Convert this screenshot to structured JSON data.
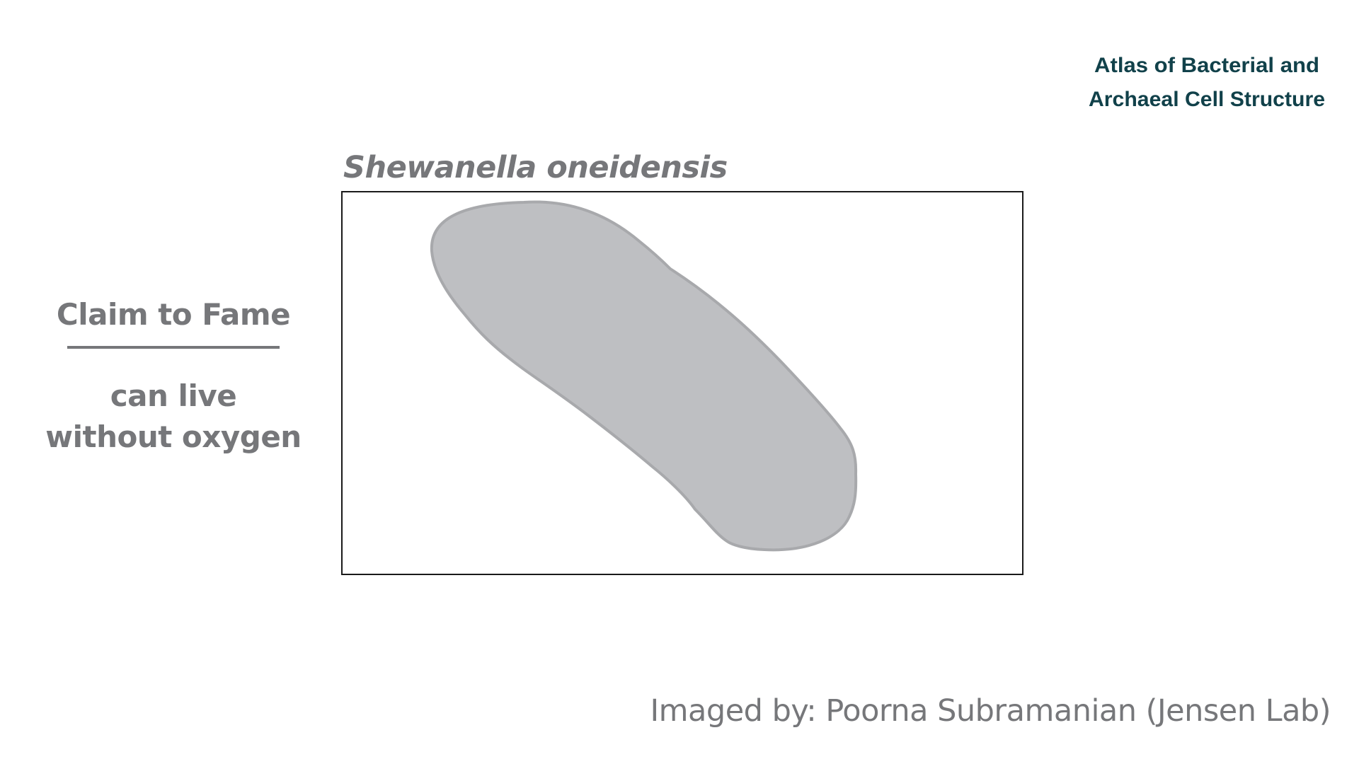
{
  "logo": {
    "line1": "Atlas of Bacterial and",
    "line2": "Archaeal Cell Structure",
    "color": "#11414a"
  },
  "species": {
    "name": "Shewanella oneidensis"
  },
  "cell": {
    "fill": "#bebfc2",
    "stroke": "#a8a9ac"
  },
  "claim": {
    "heading": "Claim to Fame",
    "text": "can live without oxygen"
  },
  "credit": {
    "text": "Imaged by: Poorna Subramanian (Jensen Lab)"
  },
  "colors": {
    "text_gray": "#76777a",
    "frame_border": "#1a1a1a"
  }
}
